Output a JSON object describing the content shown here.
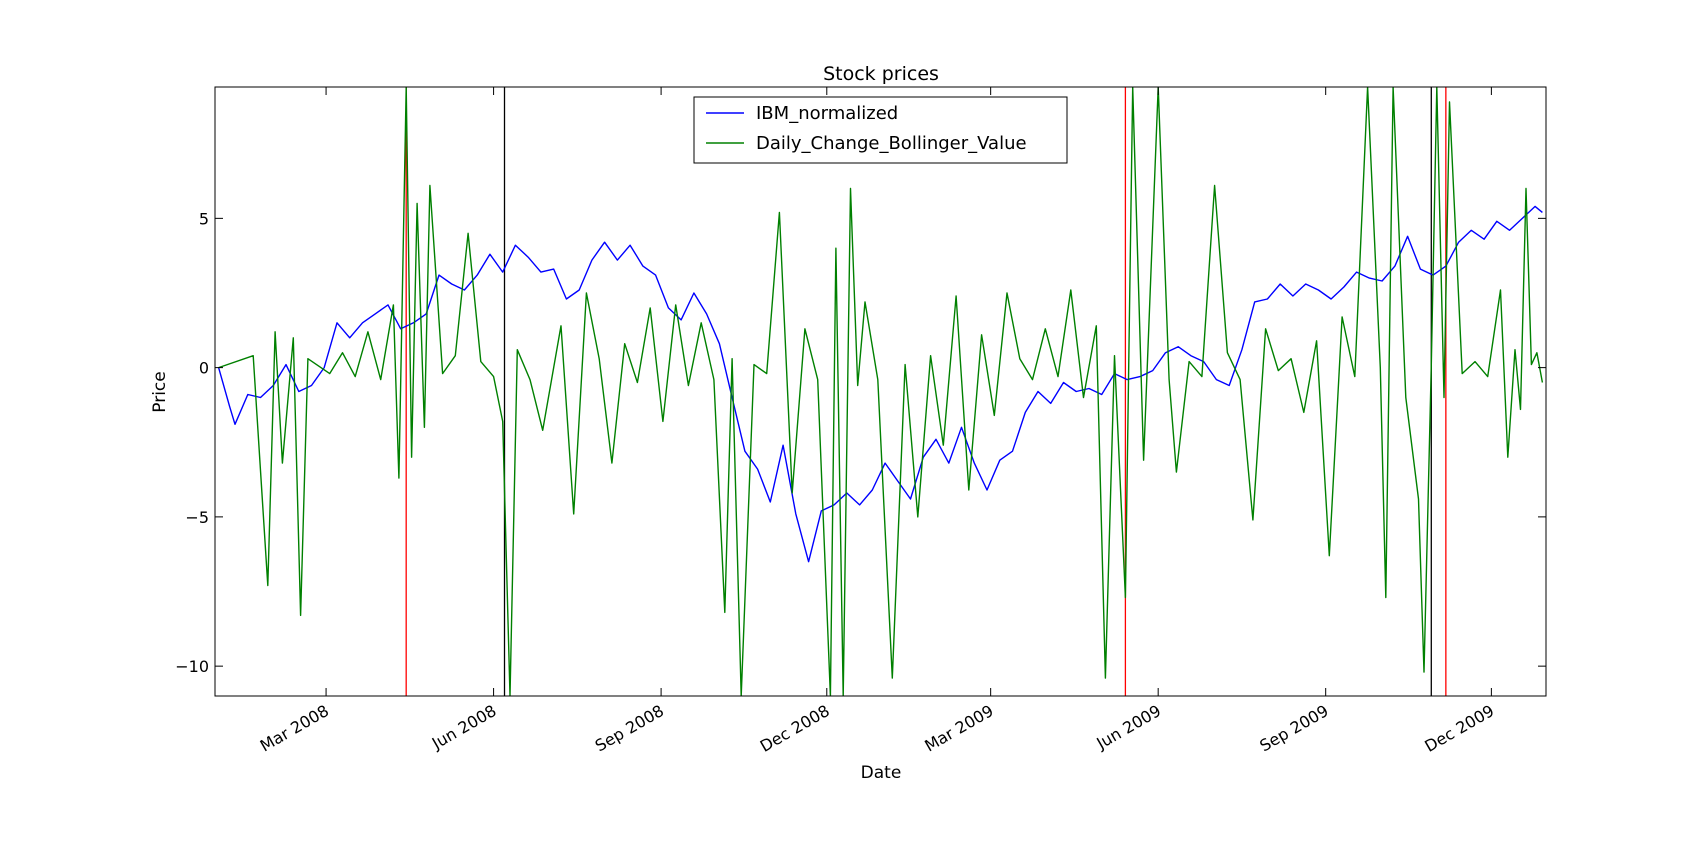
{
  "chart_data": {
    "type": "line",
    "title": "Stock prices",
    "xlabel": "Date",
    "ylabel": "Price",
    "xlim": [
      "2007-12-31",
      "2009-12-31"
    ],
    "ylim": [
      -11,
      9.4
    ],
    "yticks": [
      5,
      0,
      -5,
      -10
    ],
    "ytick_labels": [
      "5",
      "0",
      "−5",
      "−10"
    ],
    "xticks": [
      {
        "date": "2008-03-01",
        "label": "Mar 2008"
      },
      {
        "date": "2008-06-01",
        "label": "Jun 2008"
      },
      {
        "date": "2008-09-01",
        "label": "Sep 2008"
      },
      {
        "date": "2008-12-01",
        "label": "Dec 2008"
      },
      {
        "date": "2009-03-01",
        "label": "Mar 2009"
      },
      {
        "date": "2009-06-01",
        "label": "Jun 2009"
      },
      {
        "date": "2009-09-01",
        "label": "Sep 2009"
      },
      {
        "date": "2009-12-01",
        "label": "Dec 2009"
      }
    ],
    "grid": false,
    "legend": "top-center",
    "series": [
      {
        "name": "IBM_normalized",
        "color": "#0000ff",
        "points": [
          [
            "2008-01-02",
            0.0
          ],
          [
            "2008-01-08",
            -1.3
          ],
          [
            "2008-01-11",
            -1.9
          ],
          [
            "2008-01-18",
            -0.9
          ],
          [
            "2008-01-25",
            -1.0
          ],
          [
            "2008-02-01",
            -0.6
          ],
          [
            "2008-02-08",
            0.1
          ],
          [
            "2008-02-15",
            -0.8
          ],
          [
            "2008-02-22",
            -0.6
          ],
          [
            "2008-02-29",
            0.0
          ],
          [
            "2008-03-07",
            1.5
          ],
          [
            "2008-03-14",
            1.0
          ],
          [
            "2008-03-21",
            1.5
          ],
          [
            "2008-03-28",
            1.8
          ],
          [
            "2008-04-04",
            2.1
          ],
          [
            "2008-04-11",
            1.3
          ],
          [
            "2008-04-18",
            1.5
          ],
          [
            "2008-04-25",
            1.8
          ],
          [
            "2008-05-02",
            3.1
          ],
          [
            "2008-05-09",
            2.8
          ],
          [
            "2008-05-16",
            2.6
          ],
          [
            "2008-05-23",
            3.1
          ],
          [
            "2008-05-30",
            3.8
          ],
          [
            "2008-06-06",
            3.2
          ],
          [
            "2008-06-13",
            4.1
          ],
          [
            "2008-06-20",
            3.7
          ],
          [
            "2008-06-27",
            3.2
          ],
          [
            "2008-07-04",
            3.3
          ],
          [
            "2008-07-11",
            2.3
          ],
          [
            "2008-07-18",
            2.6
          ],
          [
            "2008-07-25",
            3.6
          ],
          [
            "2008-08-01",
            4.2
          ],
          [
            "2008-08-08",
            3.6
          ],
          [
            "2008-08-15",
            4.1
          ],
          [
            "2008-08-22",
            3.4
          ],
          [
            "2008-08-29",
            3.1
          ],
          [
            "2008-09-05",
            2.0
          ],
          [
            "2008-09-12",
            1.6
          ],
          [
            "2008-09-19",
            2.5
          ],
          [
            "2008-09-26",
            1.8
          ],
          [
            "2008-10-03",
            0.8
          ],
          [
            "2008-10-10",
            -1.0
          ],
          [
            "2008-10-17",
            -2.8
          ],
          [
            "2008-10-24",
            -3.4
          ],
          [
            "2008-10-31",
            -4.5
          ],
          [
            "2008-11-07",
            -2.6
          ],
          [
            "2008-11-14",
            -4.9
          ],
          [
            "2008-11-21",
            -6.5
          ],
          [
            "2008-11-28",
            -4.8
          ],
          [
            "2008-12-05",
            -4.6
          ],
          [
            "2008-12-12",
            -4.2
          ],
          [
            "2008-12-19",
            -4.6
          ],
          [
            "2008-12-26",
            -4.1
          ],
          [
            "2009-01-02",
            -3.2
          ],
          [
            "2009-01-09",
            -3.8
          ],
          [
            "2009-01-16",
            -4.4
          ],
          [
            "2009-01-23",
            -3.0
          ],
          [
            "2009-01-30",
            -2.4
          ],
          [
            "2009-02-06",
            -3.2
          ],
          [
            "2009-02-13",
            -2.0
          ],
          [
            "2009-02-20",
            -3.2
          ],
          [
            "2009-02-27",
            -4.1
          ],
          [
            "2009-03-06",
            -3.1
          ],
          [
            "2009-03-13",
            -2.8
          ],
          [
            "2009-03-20",
            -1.5
          ],
          [
            "2009-03-27",
            -0.8
          ],
          [
            "2009-04-03",
            -1.2
          ],
          [
            "2009-04-10",
            -0.5
          ],
          [
            "2009-04-17",
            -0.8
          ],
          [
            "2009-04-24",
            -0.7
          ],
          [
            "2009-05-01",
            -0.9
          ],
          [
            "2009-05-08",
            -0.2
          ],
          [
            "2009-05-15",
            -0.4
          ],
          [
            "2009-05-22",
            -0.3
          ],
          [
            "2009-05-29",
            -0.1
          ],
          [
            "2009-06-05",
            0.5
          ],
          [
            "2009-06-12",
            0.7
          ],
          [
            "2009-06-19",
            0.4
          ],
          [
            "2009-06-26",
            0.2
          ],
          [
            "2009-07-03",
            -0.4
          ],
          [
            "2009-07-10",
            -0.6
          ],
          [
            "2009-07-17",
            0.6
          ],
          [
            "2009-07-24",
            2.2
          ],
          [
            "2009-07-31",
            2.3
          ],
          [
            "2009-08-07",
            2.8
          ],
          [
            "2009-08-14",
            2.4
          ],
          [
            "2009-08-21",
            2.8
          ],
          [
            "2009-08-28",
            2.6
          ],
          [
            "2009-09-04",
            2.3
          ],
          [
            "2009-09-11",
            2.7
          ],
          [
            "2009-09-18",
            3.2
          ],
          [
            "2009-09-25",
            3.0
          ],
          [
            "2009-10-02",
            2.9
          ],
          [
            "2009-10-09",
            3.4
          ],
          [
            "2009-10-16",
            4.4
          ],
          [
            "2009-10-23",
            3.3
          ],
          [
            "2009-10-30",
            3.1
          ],
          [
            "2009-11-06",
            3.4
          ],
          [
            "2009-11-13",
            4.2
          ],
          [
            "2009-11-20",
            4.6
          ],
          [
            "2009-11-27",
            4.3
          ],
          [
            "2009-12-04",
            4.9
          ],
          [
            "2009-12-11",
            4.6
          ],
          [
            "2009-12-18",
            5.0
          ],
          [
            "2009-12-25",
            5.4
          ],
          [
            "2009-12-29",
            5.2
          ]
        ]
      },
      {
        "name": "Daily_Change_Bollinger_Value",
        "color": "#008000",
        "points": [
          [
            "2008-01-02",
            0.0
          ],
          [
            "2008-01-21",
            0.4
          ],
          [
            "2008-01-29",
            -7.3
          ],
          [
            "2008-02-02",
            1.2
          ],
          [
            "2008-02-06",
            -3.2
          ],
          [
            "2008-02-12",
            1.0
          ],
          [
            "2008-02-16",
            -8.3
          ],
          [
            "2008-02-20",
            0.3
          ],
          [
            "2008-03-03",
            -0.2
          ],
          [
            "2008-03-10",
            0.5
          ],
          [
            "2008-03-17",
            -0.3
          ],
          [
            "2008-03-24",
            1.2
          ],
          [
            "2008-03-31",
            -0.4
          ],
          [
            "2008-04-07",
            2.1
          ],
          [
            "2008-04-10",
            -3.7
          ],
          [
            "2008-04-14",
            9.4
          ],
          [
            "2008-04-17",
            -3.0
          ],
          [
            "2008-04-20",
            5.5
          ],
          [
            "2008-04-24",
            -2.0
          ],
          [
            "2008-04-27",
            6.1
          ],
          [
            "2008-05-04",
            -0.2
          ],
          [
            "2008-05-11",
            0.4
          ],
          [
            "2008-05-18",
            4.5
          ],
          [
            "2008-05-25",
            0.2
          ],
          [
            "2008-06-01",
            -0.3
          ],
          [
            "2008-06-06",
            -1.8
          ],
          [
            "2008-06-10",
            -11.0
          ],
          [
            "2008-06-14",
            0.6
          ],
          [
            "2008-06-21",
            -0.4
          ],
          [
            "2008-06-28",
            -2.1
          ],
          [
            "2008-07-08",
            1.4
          ],
          [
            "2008-07-15",
            -4.9
          ],
          [
            "2008-07-22",
            2.5
          ],
          [
            "2008-07-29",
            0.3
          ],
          [
            "2008-08-05",
            -3.2
          ],
          [
            "2008-08-12",
            0.8
          ],
          [
            "2008-08-19",
            -0.5
          ],
          [
            "2008-08-26",
            2.0
          ],
          [
            "2008-09-02",
            -1.8
          ],
          [
            "2008-09-09",
            2.1
          ],
          [
            "2008-09-16",
            -0.6
          ],
          [
            "2008-09-23",
            1.5
          ],
          [
            "2008-09-30",
            -0.4
          ],
          [
            "2008-10-06",
            -8.2
          ],
          [
            "2008-10-10",
            0.3
          ],
          [
            "2008-10-15",
            -11.0
          ],
          [
            "2008-10-22",
            0.1
          ],
          [
            "2008-10-29",
            -0.2
          ],
          [
            "2008-11-05",
            5.2
          ],
          [
            "2008-11-12",
            -4.2
          ],
          [
            "2008-11-19",
            1.3
          ],
          [
            "2008-11-26",
            -0.4
          ],
          [
            "2008-12-03",
            -11.0
          ],
          [
            "2008-12-06",
            4.0
          ],
          [
            "2008-12-10",
            -11.0
          ],
          [
            "2008-12-14",
            6.0
          ],
          [
            "2008-12-18",
            -0.6
          ],
          [
            "2008-12-22",
            2.2
          ],
          [
            "2008-12-29",
            -0.4
          ],
          [
            "2009-01-06",
            -10.4
          ],
          [
            "2009-01-13",
            0.1
          ],
          [
            "2009-01-20",
            -5.0
          ],
          [
            "2009-01-27",
            0.4
          ],
          [
            "2009-02-03",
            -2.6
          ],
          [
            "2009-02-10",
            2.4
          ],
          [
            "2009-02-17",
            -4.1
          ],
          [
            "2009-02-24",
            1.1
          ],
          [
            "2009-03-03",
            -1.6
          ],
          [
            "2009-03-10",
            2.5
          ],
          [
            "2009-03-17",
            0.3
          ],
          [
            "2009-03-24",
            -0.4
          ],
          [
            "2009-03-31",
            1.3
          ],
          [
            "2009-04-07",
            -0.3
          ],
          [
            "2009-04-14",
            2.6
          ],
          [
            "2009-04-21",
            -1.0
          ],
          [
            "2009-04-28",
            1.4
          ],
          [
            "2009-05-03",
            -10.4
          ],
          [
            "2009-05-08",
            0.4
          ],
          [
            "2009-05-14",
            -7.7
          ],
          [
            "2009-05-18",
            9.4
          ],
          [
            "2009-05-24",
            -3.1
          ],
          [
            "2009-06-01",
            9.4
          ],
          [
            "2009-06-07",
            -0.4
          ],
          [
            "2009-06-11",
            -3.5
          ],
          [
            "2009-06-18",
            0.2
          ],
          [
            "2009-06-25",
            -0.3
          ],
          [
            "2009-07-02",
            6.1
          ],
          [
            "2009-07-09",
            0.5
          ],
          [
            "2009-07-16",
            -0.4
          ],
          [
            "2009-07-23",
            -5.1
          ],
          [
            "2009-07-30",
            1.3
          ],
          [
            "2009-08-06",
            -0.1
          ],
          [
            "2009-08-13",
            0.3
          ],
          [
            "2009-08-20",
            -1.5
          ],
          [
            "2009-08-27",
            0.9
          ],
          [
            "2009-09-03",
            -6.3
          ],
          [
            "2009-09-10",
            1.7
          ],
          [
            "2009-09-17",
            -0.3
          ],
          [
            "2009-09-24",
            9.4
          ],
          [
            "2009-10-01",
            0.0
          ],
          [
            "2009-10-04",
            -7.7
          ],
          [
            "2009-10-08",
            9.4
          ],
          [
            "2009-10-15",
            -1.0
          ],
          [
            "2009-10-22",
            -4.4
          ],
          [
            "2009-10-25",
            -10.2
          ],
          [
            "2009-10-29",
            0.1
          ],
          [
            "2009-11-01",
            9.4
          ],
          [
            "2009-11-05",
            -1.0
          ],
          [
            "2009-11-08",
            8.9
          ],
          [
            "2009-11-15",
            -0.2
          ],
          [
            "2009-11-22",
            0.2
          ],
          [
            "2009-11-29",
            -0.3
          ],
          [
            "2009-12-06",
            2.6
          ],
          [
            "2009-12-10",
            -3.0
          ],
          [
            "2009-12-14",
            0.6
          ],
          [
            "2009-12-17",
            -1.4
          ],
          [
            "2009-12-20",
            6.0
          ],
          [
            "2009-12-23",
            0.1
          ],
          [
            "2009-12-26",
            0.5
          ],
          [
            "2009-12-29",
            -0.5
          ]
        ]
      }
    ],
    "vlines": [
      {
        "date": "2008-04-14",
        "color": "#ff0000"
      },
      {
        "date": "2008-06-07",
        "color": "#000000"
      },
      {
        "date": "2009-05-14",
        "color": "#ff0000"
      },
      {
        "date": "2009-10-29",
        "color": "#000000"
      },
      {
        "date": "2009-11-06",
        "color": "#ff0000"
      }
    ]
  }
}
